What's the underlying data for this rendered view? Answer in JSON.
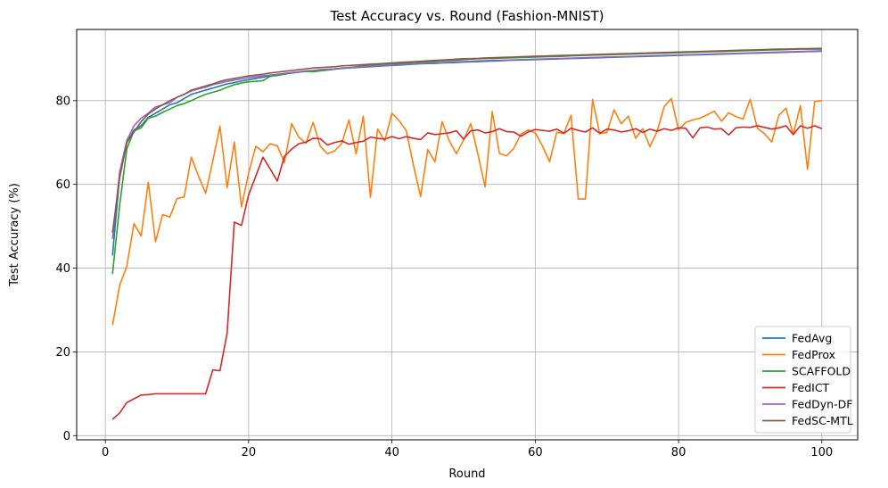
{
  "chart_data": {
    "type": "line",
    "title": "Test Accuracy vs. Round (Fashion-MNIST)",
    "xlabel": "Round",
    "ylabel": "Test Accuracy (%)",
    "xlim": [
      -4,
      105
    ],
    "ylim": [
      -1,
      97
    ],
    "xticks": [
      0,
      20,
      40,
      60,
      80,
      100
    ],
    "yticks": [
      0,
      20,
      40,
      60,
      80
    ],
    "grid": true,
    "legend": "lower-right",
    "series": [
      {
        "name": "FedAvg",
        "color": "#1f77b4",
        "values": [
          43,
          62,
          70,
          73,
          74,
          76,
          77,
          78,
          79,
          79.5,
          80.5,
          81.5,
          82,
          82.5,
          83,
          83.5,
          84,
          84.3,
          84.7,
          85,
          85.3,
          85.6,
          85.9,
          86.2,
          86.4,
          86.6,
          86.8,
          87,
          87.1,
          87.3,
          87.4,
          87.6,
          87.7,
          87.8,
          87.9,
          88,
          88.1,
          88.2,
          88.3,
          88.4,
          88.5,
          88.6,
          88.7,
          88.8,
          88.85,
          88.9,
          89,
          89.05,
          89.1,
          89.2,
          89.25,
          89.3,
          89.4,
          89.45,
          89.5,
          89.6,
          89.65,
          89.7,
          89.75,
          89.8,
          89.85,
          89.9,
          89.95,
          90,
          90.05,
          90.1,
          90.15,
          90.2,
          90.25,
          90.3,
          90.35,
          90.4,
          90.45,
          90.5,
          90.55,
          90.6,
          90.65,
          90.7,
          90.75,
          90.8,
          90.85,
          90.9,
          90.95,
          91,
          91.05,
          91.1,
          91.15,
          91.2,
          91.25,
          91.3,
          91.35,
          91.4,
          91.45,
          91.5,
          91.55,
          91.6,
          91.65,
          91.7,
          91.75,
          91.8
        ]
      },
      {
        "name": "FedProx",
        "color": "#ff7f0e",
        "values": [
          26.4,
          35.9,
          40.5,
          50.6,
          47.7,
          60.5,
          46.3,
          52.8,
          52.2,
          56.6,
          57,
          66.5,
          62,
          57.9,
          65.6,
          73.9,
          59.2,
          70.1,
          54.6,
          62.7,
          69.1,
          67.8,
          69.7,
          69.2,
          65.2,
          74.5,
          71.3,
          69.8,
          74.8,
          69.1,
          67.3,
          68,
          69.8,
          75.4,
          67.3,
          76.3,
          56.9,
          73.2,
          70.4,
          77,
          75.2,
          72.8,
          64.6,
          57.1,
          68.3,
          65.4,
          75,
          70.4,
          67.3,
          70.6,
          74.5,
          67.2,
          59.4,
          77.4,
          67.4,
          66.8,
          68.6,
          72,
          73,
          72.3,
          69.2,
          65.4,
          72.4,
          72.2,
          76.5,
          56.5,
          56.5,
          80.3,
          72.1,
          72.4,
          77.8,
          74.5,
          76.3,
          71,
          73.3,
          69,
          72.6,
          78.6,
          80.5,
          73,
          74.8,
          75.4,
          75.8,
          76.6,
          77.5,
          75.1,
          77.1,
          76.2,
          75.6,
          80.3,
          73.4,
          72.1,
          70.1,
          76.5,
          78.2,
          71.9,
          78.8,
          63.6,
          79.8,
          80
        ]
      },
      {
        "name": "SCAFFOLD",
        "color": "#2ca02c",
        "values": [
          38.6,
          55,
          68.5,
          72.8,
          73.5,
          75.8,
          76.3,
          77.2,
          78,
          78.8,
          79.3,
          80,
          80.8,
          81.5,
          82,
          82.5,
          83.2,
          83.8,
          84.2,
          84.5,
          84.6,
          84.8,
          85.8,
          86,
          86.3,
          86.6,
          86.8,
          87,
          86.9,
          87.1,
          87.3,
          87.5,
          87.7,
          87.9,
          88.1,
          88.3,
          88.5,
          88.6,
          88.7,
          88.8,
          88.9,
          89,
          89.1,
          89.2,
          89.3,
          89.4,
          89.5,
          89.6,
          89.7,
          89.8,
          89.9,
          90,
          90.05,
          90.1,
          90.15,
          90.2,
          90.25,
          90.3,
          90.35,
          90.4,
          90.45,
          90.5,
          90.55,
          90.6,
          90.7,
          90.75,
          90.8,
          90.85,
          90.9,
          90.95,
          91,
          91.05,
          91.1,
          91.15,
          91.2,
          91.25,
          91.3,
          91.35,
          91.4,
          91.45,
          91.5,
          91.55,
          91.6,
          91.65,
          91.7,
          91.75,
          91.8,
          91.85,
          91.9,
          91.95,
          92,
          92.05,
          92.1,
          92.15,
          92.2,
          92.25,
          92.3,
          92.3,
          92.3,
          92.3
        ]
      },
      {
        "name": "FedICT",
        "color": "#d62728",
        "values": [
          3.9,
          5.4,
          7.9,
          8.8,
          9.7,
          9.8,
          10,
          10,
          10,
          10,
          10,
          10,
          10,
          10,
          15.7,
          15.5,
          24.5,
          51,
          50.2,
          57.5,
          62,
          66.5,
          63.7,
          60.8,
          66.7,
          68.4,
          69.7,
          70.1,
          71,
          70.9,
          69.4,
          70,
          70.4,
          69.6,
          70,
          70.3,
          71.3,
          71,
          70.8,
          71.4,
          70.9,
          71.4,
          71,
          70.7,
          72.3,
          71.9,
          72.1,
          72.3,
          72.8,
          70.8,
          72.8,
          73,
          72.3,
          72.6,
          73.3,
          72.6,
          72.5,
          71.5,
          72.5,
          73.1,
          72.9,
          72.7,
          73.2,
          72.2,
          73.4,
          72.9,
          72.5,
          73.5,
          72.2,
          73.2,
          73,
          72.5,
          72.8,
          73.3,
          72.4,
          73.2,
          72.7,
          73.3,
          72.9,
          73.5,
          73.4,
          71.1,
          73.5,
          73.7,
          73.2,
          73.3,
          71.8,
          73.5,
          73.7,
          73.6,
          74,
          73.6,
          73.2,
          73.5,
          74,
          71.9,
          74,
          73.4,
          74,
          73.3
        ]
      },
      {
        "name": "FedDyn-DF",
        "color": "#9467bd",
        "values": [
          47,
          63,
          70.5,
          74,
          75.8,
          77,
          78.5,
          79,
          79.5,
          80.8,
          81.5,
          82.3,
          82.8,
          83.2,
          83.8,
          84.2,
          84.6,
          84.9,
          85.2,
          85.5,
          85.7,
          85.9,
          86.1,
          86.3,
          86.5,
          86.7,
          86.9,
          87.1,
          87.2,
          87.4,
          87.5,
          87.6,
          87.8,
          87.9,
          88,
          88.1,
          88.2,
          88.3,
          88.4,
          88.5,
          88.6,
          88.7,
          88.8,
          88.9,
          89,
          89.05,
          89.1,
          89.2,
          89.3,
          89.35,
          89.4,
          89.5,
          89.55,
          89.6,
          89.65,
          89.7,
          89.75,
          89.8,
          89.85,
          89.9,
          89.95,
          90,
          90.05,
          90.1,
          90.15,
          90.2,
          90.25,
          90.3,
          90.35,
          90.4,
          90.45,
          90.5,
          90.55,
          90.6,
          90.65,
          90.7,
          90.75,
          90.8,
          90.85,
          90.9,
          90.95,
          91,
          91.05,
          91.1,
          91.15,
          91.2,
          91.25,
          91.3,
          91.35,
          91.4,
          91.45,
          91.5,
          91.55,
          91.6,
          91.65,
          91.7,
          91.75,
          91.8,
          91.85,
          91.9
        ]
      },
      {
        "name": "FedSC-MTL",
        "color": "#8c564b",
        "values": [
          48.5,
          61.5,
          70,
          72.5,
          75,
          76.8,
          78,
          79,
          80,
          80.8,
          81.5,
          82.5,
          83,
          83.5,
          84,
          84.6,
          85,
          85.3,
          85.6,
          85.9,
          86.1,
          86.3,
          86.6,
          86.8,
          87,
          87.2,
          87.4,
          87.6,
          87.8,
          87.9,
          88,
          88.1,
          88.3,
          88.4,
          88.5,
          88.6,
          88.7,
          88.8,
          88.9,
          89,
          89.1,
          89.2,
          89.3,
          89.4,
          89.5,
          89.6,
          89.7,
          89.8,
          89.9,
          90,
          90.05,
          90.1,
          90.2,
          90.25,
          90.3,
          90.35,
          90.4,
          90.5,
          90.55,
          90.6,
          90.65,
          90.7,
          90.75,
          90.8,
          90.85,
          90.9,
          90.95,
          91,
          91.05,
          91.1,
          91.15,
          91.2,
          91.25,
          91.3,
          91.35,
          91.4,
          91.45,
          91.5,
          91.55,
          91.6,
          91.65,
          91.7,
          91.75,
          91.8,
          91.85,
          91.9,
          91.95,
          92,
          92.05,
          92.1,
          92.15,
          92.2,
          92.25,
          92.3,
          92.3,
          92.35,
          92.4,
          92.4,
          92.45,
          92.5
        ]
      }
    ]
  }
}
